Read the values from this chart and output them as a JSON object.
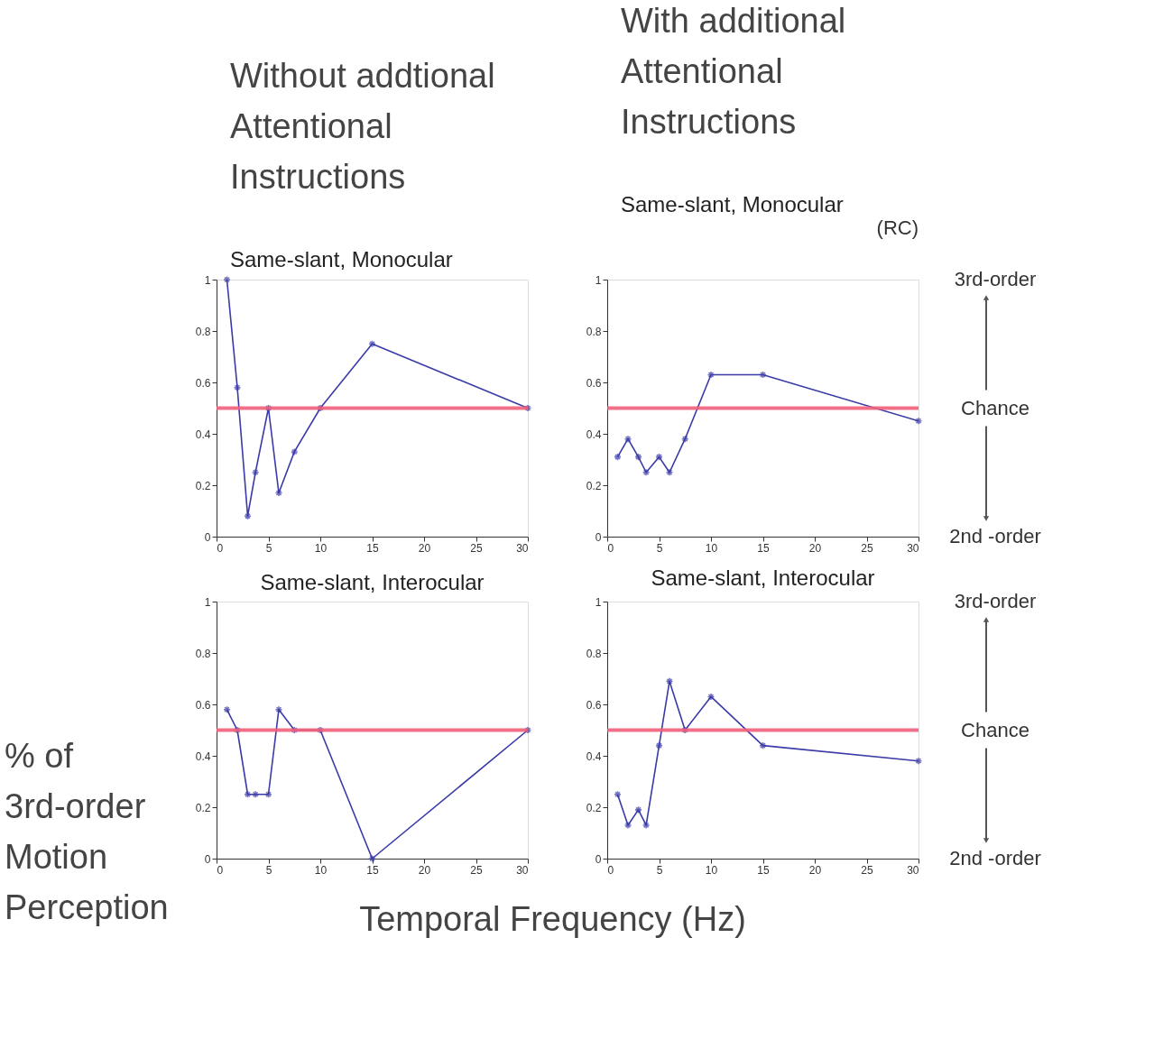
{
  "chart_data": [
    {
      "type": "line",
      "title": "Without addtional Attentional Instructions",
      "subtitle": "Same-slant, Monocular",
      "ylabel": "% of 3rd-order Motion Perception",
      "x": [
        1,
        2,
        3,
        3.75,
        5,
        6,
        7.5,
        10,
        15,
        30
      ],
      "series": [
        {
          "color": "#3a3aa8",
          "values": [
            1.0,
            0.58,
            0.08,
            0.25,
            0.5,
            0.17,
            0.33,
            0.5,
            0.75,
            0.5
          ]
        }
      ],
      "xlim": [
        0,
        30
      ],
      "ylim": [
        0,
        1
      ],
      "xticks": [
        0,
        5,
        10,
        15,
        20,
        25,
        30
      ],
      "yticks": [
        0,
        0.2,
        0.4,
        0.6,
        0.8,
        1
      ],
      "ref_lines": [
        {
          "axis": "y",
          "value": 0.5,
          "color": "#f0607a"
        }
      ],
      "marker": "cross",
      "grid": false
    },
    {
      "type": "line",
      "title": "With additional Attentional Instructions",
      "subtitle": "Same-slant, Monocular",
      "annotations": [
        "(RC)",
        "3rd-order",
        "Chance",
        "2nd -order"
      ],
      "x": [
        1,
        2,
        3,
        3.75,
        5,
        6,
        7.5,
        10,
        15,
        30
      ],
      "series": [
        {
          "color": "#3a3aa8",
          "values": [
            0.31,
            0.38,
            0.31,
            0.25,
            0.31,
            0.25,
            0.38,
            0.63,
            0.63,
            0.45
          ]
        }
      ],
      "xlim": [
        0,
        30
      ],
      "ylim": [
        0,
        1
      ],
      "xticks": [
        0,
        5,
        10,
        15,
        20,
        25,
        30
      ],
      "yticks": [
        0,
        0.2,
        0.4,
        0.6,
        0.8,
        1
      ],
      "ref_lines": [
        {
          "axis": "y",
          "value": 0.5,
          "color": "#f0607a"
        }
      ],
      "marker": "cross",
      "grid": false
    },
    {
      "type": "line",
      "title": "Same-slant, Interocular",
      "xlabel": "Temporal Frequency (Hz)",
      "x": [
        1,
        2,
        3,
        3.75,
        5,
        6,
        7.5,
        10,
        15,
        30
      ],
      "series": [
        {
          "color": "#3a3aa8",
          "values": [
            0.58,
            0.5,
            0.25,
            0.25,
            0.25,
            0.58,
            0.5,
            0.5,
            0,
            0.5
          ]
        }
      ],
      "xlim": [
        0,
        30
      ],
      "ylim": [
        0,
        1
      ],
      "xticks": [
        0,
        5,
        10,
        15,
        20,
        25,
        30
      ],
      "yticks": [
        0,
        0.2,
        0.4,
        0.6,
        0.8,
        1
      ],
      "ref_lines": [
        {
          "axis": "y",
          "value": 0.5,
          "color": "#f0607a"
        }
      ],
      "marker": "cross",
      "grid": false
    },
    {
      "type": "line",
      "title": "Same-slant, Interocular",
      "annotations": [
        "3rd-order",
        "Chance",
        "2nd -order"
      ],
      "x": [
        1,
        2,
        3,
        3.75,
        5,
        6,
        7.5,
        10,
        15,
        30
      ],
      "series": [
        {
          "color": "#3a3aa8",
          "values": [
            0.25,
            0.13,
            0.19,
            0.13,
            0.44,
            0.69,
            0.5,
            0.63,
            0.44,
            0.38
          ]
        }
      ],
      "xlim": [
        0,
        30
      ],
      "ylim": [
        0,
        1
      ],
      "xticks": [
        0,
        5,
        10,
        15,
        20,
        25,
        30
      ],
      "yticks": [
        0,
        0.2,
        0.4,
        0.6,
        0.8,
        1
      ],
      "ref_lines": [
        {
          "axis": "y",
          "value": 0.5,
          "color": "#f0607a"
        }
      ],
      "marker": "cross",
      "grid": false
    }
  ]
}
